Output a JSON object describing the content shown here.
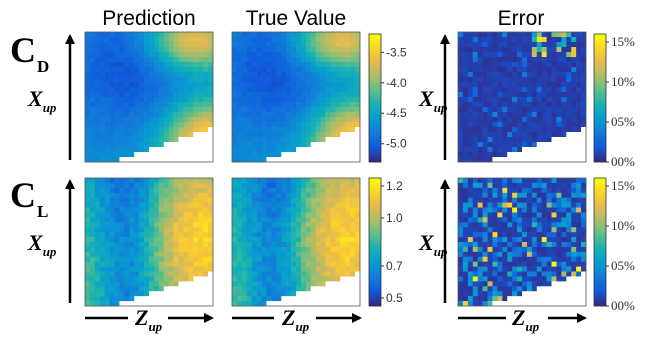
{
  "chart_data": [
    {
      "type": "heatmap",
      "row": "CD",
      "row_label_main": "C",
      "row_label_sub": "D",
      "panels": [
        "Prediction",
        "True Value",
        "Error"
      ],
      "xlabel_main": "Z",
      "xlabel_sub": "up",
      "ylabel_main": "X",
      "ylabel_sub": "up",
      "grid": {
        "cols": 26,
        "rows": 26
      },
      "value_colorbar": {
        "ticks": [
          "-3.5",
          "-4.0",
          "-4.5",
          "-5.0"
        ],
        "tick_values": [
          -3.5,
          -4.0,
          -4.5,
          -5.0
        ],
        "range": [
          -5.3,
          -3.2
        ]
      },
      "error_colorbar": {
        "ticks": [
          "15%",
          "10%",
          "05%",
          "00%"
        ],
        "tick_values": [
          15,
          10,
          5,
          0
        ],
        "range": [
          0,
          16
        ]
      },
      "description_values": {
        "low_region": "upper-left",
        "high_region": "top-right and bottom-right",
        "blank_region": "bottom-right staircase"
      }
    },
    {
      "type": "heatmap",
      "row": "CL",
      "row_label_main": "C",
      "row_label_sub": "L",
      "panels": [
        "Prediction",
        "True Value",
        "Error"
      ],
      "xlabel_main": "Z",
      "xlabel_sub": "up",
      "ylabel_main": "X",
      "ylabel_sub": "up",
      "grid": {
        "cols": 26,
        "rows": 26
      },
      "value_colorbar": {
        "ticks": [
          "1.2",
          "1.0",
          "0.7",
          "0.5"
        ],
        "tick_values": [
          1.2,
          1.0,
          0.7,
          0.5
        ],
        "range": [
          0.45,
          1.25
        ]
      },
      "error_colorbar": {
        "ticks": [
          "15%",
          "10%",
          "05%",
          "00%"
        ],
        "tick_values": [
          15,
          10,
          5,
          0
        ],
        "range": [
          0,
          16
        ]
      },
      "description_values": {
        "low_region": "left band",
        "high_region": "right side",
        "blank_region": "bottom-right staircase"
      }
    }
  ],
  "titles": {
    "prediction": "Prediction",
    "true_value": "True Value",
    "error": "Error"
  }
}
